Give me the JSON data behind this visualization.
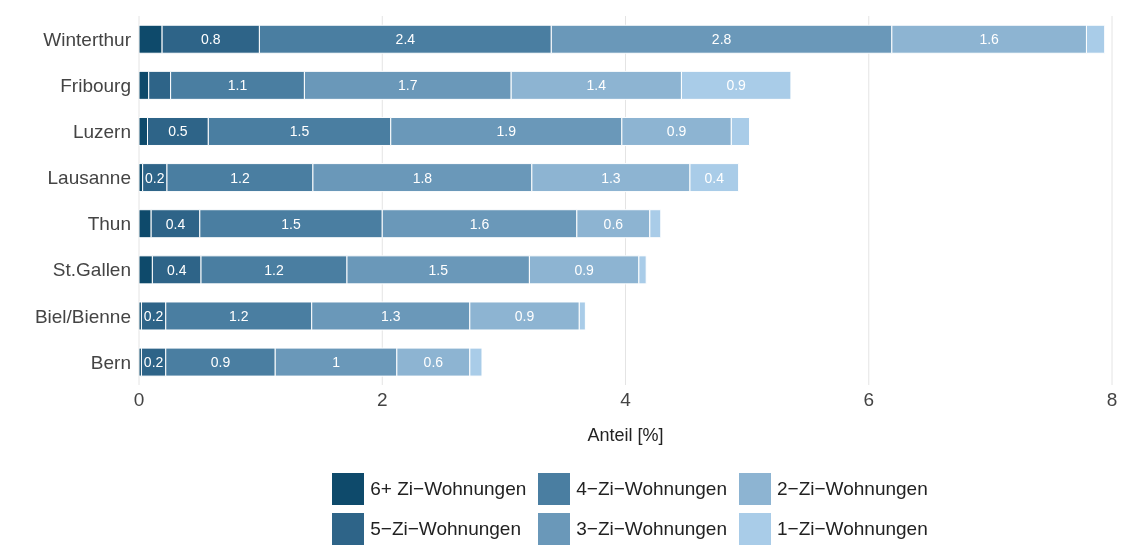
{
  "chart_data": {
    "type": "bar",
    "orientation": "horizontal",
    "stacked": true,
    "xlabel": "Anteil [%]",
    "categories": [
      "Winterthur",
      "Fribourg",
      "Luzern",
      "Lausanne",
      "Thun",
      "St.Gallen",
      "Biel/Bienne",
      "Bern"
    ],
    "series": [
      {
        "name": "6+ Zi−Wohnungen",
        "color": "#0e4a6b",
        "values": [
          0.19,
          0.08,
          0.07,
          0.03,
          0.1,
          0.11,
          0.02,
          0.02
        ],
        "value_labels": [
          null,
          null,
          null,
          null,
          null,
          null,
          null,
          null
        ]
      },
      {
        "name": "5−Zi−Wohnungen",
        "color": "#2e6488",
        "values": [
          0.8,
          0.18,
          0.5,
          0.2,
          0.4,
          0.4,
          0.2,
          0.2
        ],
        "value_labels": [
          "0.8",
          null,
          "0.5",
          "0.2",
          "0.4",
          "0.4",
          "0.2",
          "0.2"
        ]
      },
      {
        "name": "4−Zi−Wohnungen",
        "color": "#4a7ea1",
        "values": [
          2.4,
          1.1,
          1.5,
          1.2,
          1.5,
          1.2,
          1.2,
          0.9
        ],
        "value_labels": [
          "2.4",
          "1.1",
          "1.5",
          "1.2",
          "1.5",
          "1.2",
          "1.2",
          "0.9"
        ]
      },
      {
        "name": "3−Zi−Wohnungen",
        "color": "#6a98b9",
        "values": [
          2.8,
          1.7,
          1.9,
          1.8,
          1.6,
          1.5,
          1.3,
          1
        ],
        "value_labels": [
          "2.8",
          "1.7",
          "1.9",
          "1.8",
          "1.6",
          "1.5",
          "1.3",
          "1"
        ]
      },
      {
        "name": "2−Zi−Wohnungen",
        "color": "#8db4d2",
        "values": [
          1.6,
          1.4,
          0.9,
          1.3,
          0.6,
          0.9,
          0.9,
          0.6
        ],
        "value_labels": [
          "1.6",
          "1.4",
          "0.9",
          "1.3",
          "0.6",
          "0.9",
          "0.9",
          "0.6"
        ]
      },
      {
        "name": "1−Zi−Wohnungen",
        "color": "#a9cce8",
        "values": [
          0.15,
          0.9,
          0.15,
          0.4,
          0.09,
          0.06,
          0.05,
          0.1
        ],
        "value_labels": [
          null,
          "0.9",
          null,
          "0.4",
          null,
          null,
          null,
          null
        ]
      }
    ],
    "xlim": [
      0,
      8
    ],
    "xticks": [
      0,
      2,
      4,
      6,
      8
    ],
    "grid": "x",
    "legend": "bottom"
  }
}
